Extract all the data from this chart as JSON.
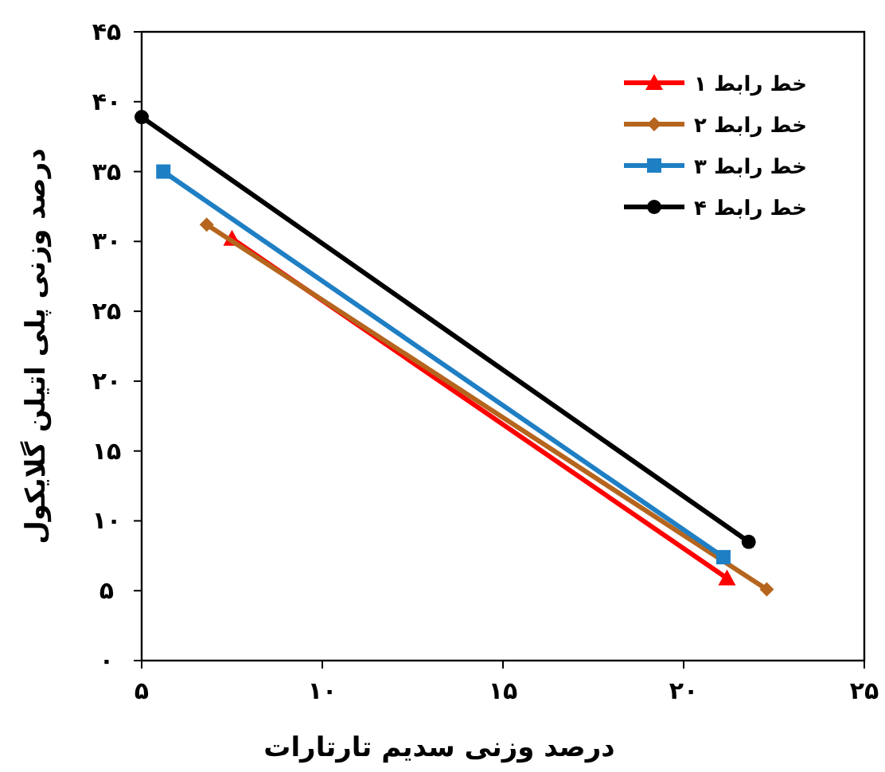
{
  "chart_data": {
    "type": "line",
    "xlabel": "درصد وزنی سدیم تارتارات",
    "ylabel": "درصد وزنی پلی اتیلن گلایکول",
    "xlim": [
      5,
      25
    ],
    "ylim": [
      0,
      45
    ],
    "xticks": [
      {
        "value": 5,
        "label": "۵"
      },
      {
        "value": 10,
        "label": "۱۰"
      },
      {
        "value": 15,
        "label": "۱۵"
      },
      {
        "value": 20,
        "label": "۲۰"
      },
      {
        "value": 25,
        "label": "۲۵"
      }
    ],
    "yticks": [
      {
        "value": 0,
        "label": "۰"
      },
      {
        "value": 5,
        "label": "۵"
      },
      {
        "value": 10,
        "label": "۱۰"
      },
      {
        "value": 15,
        "label": "۱۵"
      },
      {
        "value": 20,
        "label": "۲۰"
      },
      {
        "value": 25,
        "label": "۲۵"
      },
      {
        "value": 30,
        "label": "۳۰"
      },
      {
        "value": 35,
        "label": "۳۵"
      },
      {
        "value": 40,
        "label": "۴۰"
      },
      {
        "value": 45,
        "label": "۴۵"
      }
    ],
    "legend": "top right",
    "grid": false,
    "line_style": "solid",
    "series": [
      {
        "name": "خط رابط ۱",
        "color": "#ff0000",
        "marker": "triangle",
        "x": [
          7.5,
          21.2
        ],
        "values": [
          30.2,
          5.9
        ]
      },
      {
        "name": "خط رابط ۲",
        "color": "#b5651d",
        "marker": "diamond",
        "x": [
          6.8,
          22.3
        ],
        "values": [
          31.2,
          5.1
        ]
      },
      {
        "name": "خط رابط ۳",
        "color": "#1f7fc4",
        "marker": "square",
        "x": [
          5.6,
          21.1
        ],
        "values": [
          35.0,
          7.4
        ]
      },
      {
        "name": "خط رابط ۴",
        "color": "#000000",
        "marker": "circle",
        "x": [
          5.0,
          21.8
        ],
        "values": [
          38.9,
          8.5
        ]
      }
    ]
  }
}
